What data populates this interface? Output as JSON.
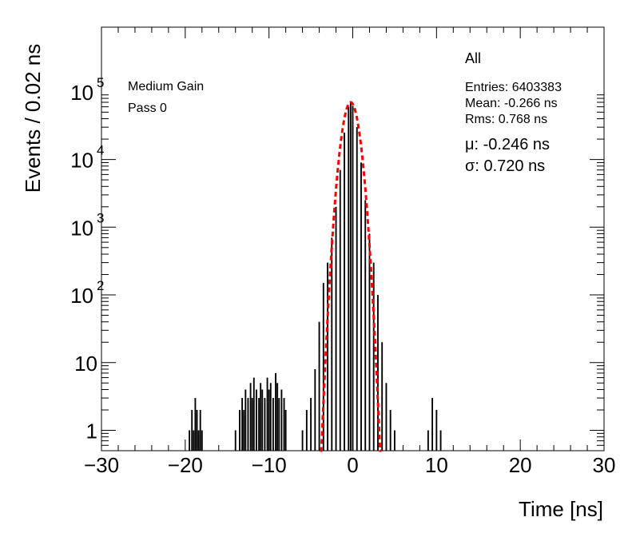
{
  "chart_data": {
    "type": "histogram",
    "title": "",
    "xlabel": "Time [ns]",
    "ylabel": "Events / 0.02 ns",
    "xlim": [
      -30,
      30
    ],
    "ylim": [
      0.5,
      900000
    ],
    "yscale": "log",
    "x_ticks": [
      {
        "value": -30,
        "label": "−30"
      },
      {
        "value": -20,
        "label": "−20"
      },
      {
        "value": -10,
        "label": "−10"
      },
      {
        "value": 0,
        "label": "0"
      },
      {
        "value": 10,
        "label": "10"
      },
      {
        "value": 20,
        "label": "20"
      },
      {
        "value": 30,
        "label": "30"
      }
    ],
    "y_ticks": [
      {
        "value": 1,
        "base": "1",
        "exp": ""
      },
      {
        "value": 10,
        "base": "10",
        "exp": ""
      },
      {
        "value": 100,
        "base": "10",
        "exp": "2"
      },
      {
        "value": 1000,
        "base": "10",
        "exp": "3"
      },
      {
        "value": 10000,
        "base": "10",
        "exp": "4"
      },
      {
        "value": 100000,
        "base": "10",
        "exp": "5"
      }
    ],
    "annotations": {
      "category": "Medium Gain",
      "pass": "Pass 0",
      "selection": "All",
      "entries": "Entries: 6403383",
      "mean": "Mean: -0.266 ns",
      "rms": "Rms: 0.768 ns",
      "fit_mu": "μ: -0.246 ns",
      "fit_sigma": "σ: 0.720 ns"
    },
    "series": [
      {
        "style": "histogram",
        "color": "#000000",
        "points": [
          [
            -19.5,
            1
          ],
          [
            -19.2,
            2
          ],
          [
            -19.0,
            1
          ],
          [
            -18.8,
            3
          ],
          [
            -18.6,
            2
          ],
          [
            -18.4,
            1
          ],
          [
            -18.2,
            2
          ],
          [
            -18.0,
            1
          ],
          [
            -14.0,
            1
          ],
          [
            -13.5,
            2
          ],
          [
            -13.2,
            3
          ],
          [
            -13.0,
            2
          ],
          [
            -12.8,
            4
          ],
          [
            -12.5,
            3
          ],
          [
            -12.2,
            5
          ],
          [
            -12.0,
            3
          ],
          [
            -11.8,
            6
          ],
          [
            -11.5,
            4
          ],
          [
            -11.2,
            3
          ],
          [
            -11.0,
            5
          ],
          [
            -10.8,
            4
          ],
          [
            -10.5,
            3
          ],
          [
            -10.2,
            6
          ],
          [
            -10.0,
            4
          ],
          [
            -9.8,
            5
          ],
          [
            -9.5,
            3
          ],
          [
            -9.2,
            7
          ],
          [
            -9.0,
            5
          ],
          [
            -8.8,
            3
          ],
          [
            -8.5,
            4
          ],
          [
            -8.2,
            3
          ],
          [
            -8.0,
            2
          ],
          [
            -6.0,
            1
          ],
          [
            -5.5,
            2
          ],
          [
            -5.0,
            3
          ],
          [
            -4.5,
            8
          ],
          [
            -4.0,
            40
          ],
          [
            -3.5,
            150
          ],
          [
            -3.0,
            300
          ],
          [
            -2.5,
            700
          ],
          [
            -2.0,
            2000
          ],
          [
            -1.5,
            7000
          ],
          [
            -1.0,
            25000
          ],
          [
            -0.5,
            60000
          ],
          [
            -0.25,
            70000
          ],
          [
            0.0,
            62000
          ],
          [
            0.5,
            30000
          ],
          [
            1.0,
            9000
          ],
          [
            1.5,
            2500
          ],
          [
            2.0,
            800
          ],
          [
            2.5,
            300
          ],
          [
            3.0,
            100
          ],
          [
            3.5,
            20
          ],
          [
            4.0,
            5
          ],
          [
            4.5,
            2
          ],
          [
            5.0,
            1
          ],
          [
            9.0,
            1
          ],
          [
            9.5,
            3
          ],
          [
            10.0,
            2
          ],
          [
            10.5,
            1
          ]
        ]
      },
      {
        "style": "fit",
        "color": "#ff0000",
        "function": "gaussian",
        "mu": -0.246,
        "sigma": 0.72,
        "amplitude": 70000,
        "range": [
          -3.9,
          3.45
        ]
      }
    ]
  }
}
